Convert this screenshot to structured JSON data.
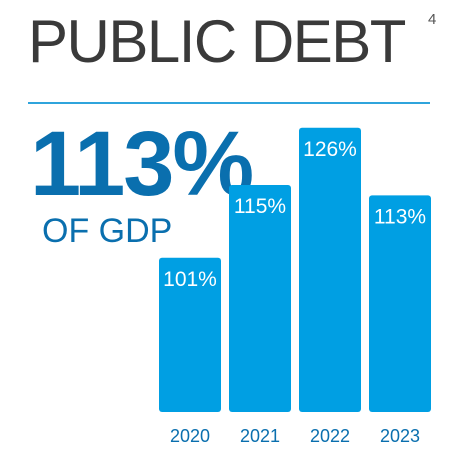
{
  "header": {
    "title": "PUBLIC DEBT",
    "footnote": "4"
  },
  "highlight": {
    "value": "113%",
    "label": "OF GDP"
  },
  "colors": {
    "bar": "#009fe3",
    "accent": "#0a6fae",
    "rule": "#2fa4dc"
  },
  "chart_data": {
    "type": "bar",
    "title": "PUBLIC DEBT",
    "categories": [
      "2020",
      "2021",
      "2022",
      "2023"
    ],
    "values": [
      101,
      115,
      126,
      113
    ],
    "data_labels": [
      "101%",
      "115%",
      "126%",
      "113%"
    ],
    "xlabel": "",
    "ylabel": "",
    "grid": false,
    "legend": "none"
  }
}
